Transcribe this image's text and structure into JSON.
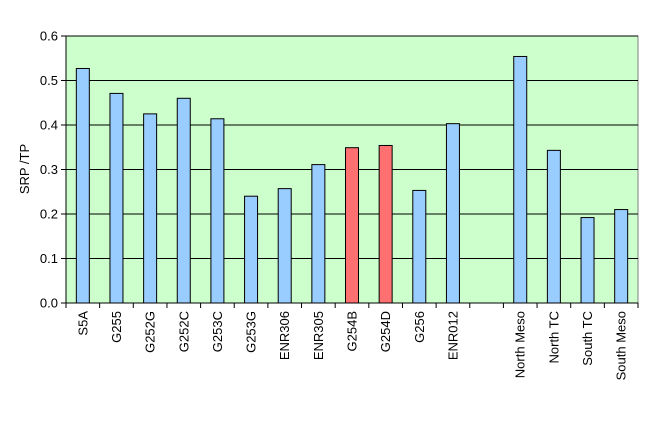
{
  "chart_data": {
    "type": "bar",
    "title": "",
    "xlabel": "",
    "ylabel": "SRP /TP",
    "ylim": [
      0,
      0.6
    ],
    "yticks": [
      0.0,
      0.1,
      0.2,
      0.3,
      0.4,
      0.5,
      0.6
    ],
    "ytick_labels": [
      "0.0",
      "0.1",
      "0.2",
      "0.3",
      "0.4",
      "0.5",
      "0.6"
    ],
    "grid": true,
    "legend": "none",
    "categories": [
      "S5A",
      "G255",
      "G252G",
      "G252C",
      "G253C",
      "G253G",
      "ENR306",
      "ENR305",
      "G254B",
      "G254D",
      "G256",
      "ENR012",
      "",
      "North Meso",
      "North TC",
      "South TC",
      "South Meso"
    ],
    "values": [
      0.527,
      0.471,
      0.425,
      0.46,
      0.414,
      0.24,
      0.257,
      0.311,
      0.349,
      0.354,
      0.253,
      0.403,
      null,
      0.554,
      0.343,
      0.192,
      0.21
    ],
    "bar_colors": [
      "#99ccff",
      "#99ccff",
      "#99ccff",
      "#99ccff",
      "#99ccff",
      "#99ccff",
      "#99ccff",
      "#99ccff",
      "#ff7070",
      "#ff7070",
      "#99ccff",
      "#99ccff",
      null,
      "#99ccff",
      "#99ccff",
      "#99ccff",
      "#99ccff"
    ],
    "plot_background": "#ccffcc",
    "bar_outline": "#000000"
  }
}
